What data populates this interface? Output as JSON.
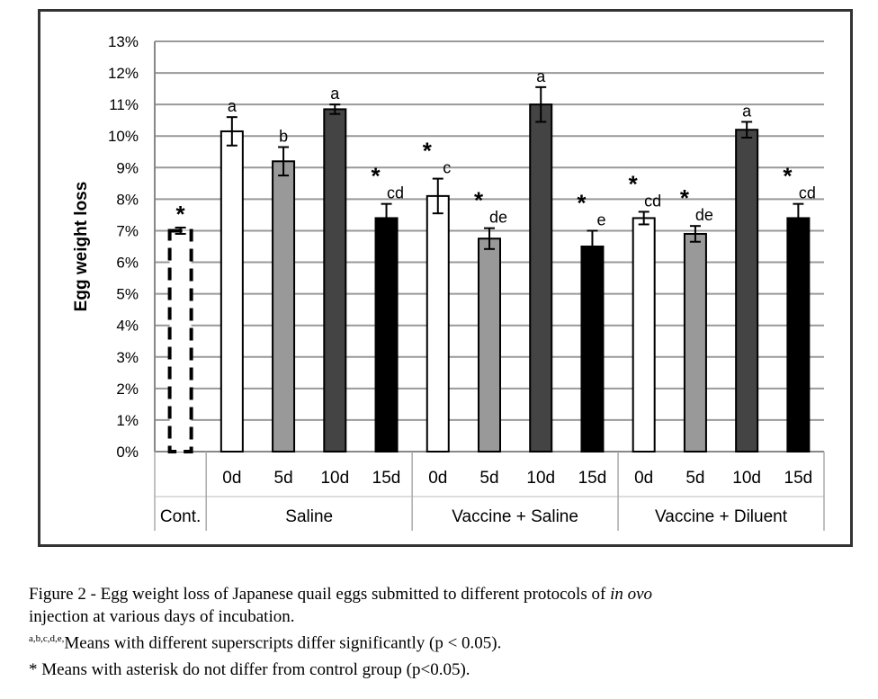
{
  "chart_data": {
    "type": "bar",
    "ylabel": "Egg weight loss",
    "ylim": [
      0,
      13
    ],
    "yticks": [
      "0%",
      "1%",
      "2%",
      "3%",
      "4%",
      "5%",
      "6%",
      "7%",
      "8%",
      "9%",
      "10%",
      "11%",
      "12%",
      "13%"
    ],
    "grid": true,
    "groups": [
      {
        "name": "Cont.",
        "bars": [
          {
            "label": "",
            "value": 7.0,
            "err": 0.1,
            "letter": "",
            "star": "*",
            "fill": "control"
          }
        ]
      },
      {
        "name": "Saline",
        "bars": [
          {
            "label": "0d",
            "value": 10.15,
            "err": 0.45,
            "letter": "a",
            "star": "",
            "fill": "#ffffff"
          },
          {
            "label": "5d",
            "value": 9.2,
            "err": 0.45,
            "letter": "b",
            "star": "",
            "fill": "#999999"
          },
          {
            "label": "10d",
            "value": 10.85,
            "err": 0.15,
            "letter": "a",
            "star": "",
            "fill": "#444444"
          },
          {
            "label": "15d",
            "value": 7.4,
            "err": 0.45,
            "letter": "cd",
            "star": "*",
            "fill": "#000000"
          }
        ]
      },
      {
        "name": "Vaccine + Saline",
        "bars": [
          {
            "label": "0d",
            "value": 8.1,
            "err": 0.55,
            "letter": "c",
            "star": "*",
            "fill": "#ffffff"
          },
          {
            "label": "5d",
            "value": 6.75,
            "err": 0.33,
            "letter": "de",
            "star": "*",
            "fill": "#999999"
          },
          {
            "label": "10d",
            "value": 11.0,
            "err": 0.55,
            "letter": "a",
            "star": "",
            "fill": "#444444"
          },
          {
            "label": "15d",
            "value": 6.5,
            "err": 0.5,
            "letter": "e",
            "star": "*",
            "fill": "#000000"
          }
        ]
      },
      {
        "name": "Vaccine + Diluent",
        "bars": [
          {
            "label": "0d",
            "value": 7.4,
            "err": 0.2,
            "letter": "cd",
            "star": "*",
            "fill": "#ffffff"
          },
          {
            "label": "5d",
            "value": 6.9,
            "err": 0.25,
            "letter": "de",
            "star": "*",
            "fill": "#999999"
          },
          {
            "label": "10d",
            "value": 10.2,
            "err": 0.25,
            "letter": "a",
            "star": "",
            "fill": "#444444"
          },
          {
            "label": "15d",
            "value": 7.4,
            "err": 0.45,
            "letter": "cd",
            "star": "*",
            "fill": "#000000"
          }
        ]
      }
    ]
  },
  "caption": {
    "line1": "Figure 2 - Egg weight loss of Japanese quail eggs submitted to different protocols of ",
    "line1_italic": "in ovo",
    "line2": "injection at various days of incubation.",
    "line3_sup": "a,b,c,d,e,",
    "line3": "Means with different superscripts differ significantly (p < 0.05).",
    "line4": "* Means with asterisk do not differ from control group (p<0.05)."
  }
}
